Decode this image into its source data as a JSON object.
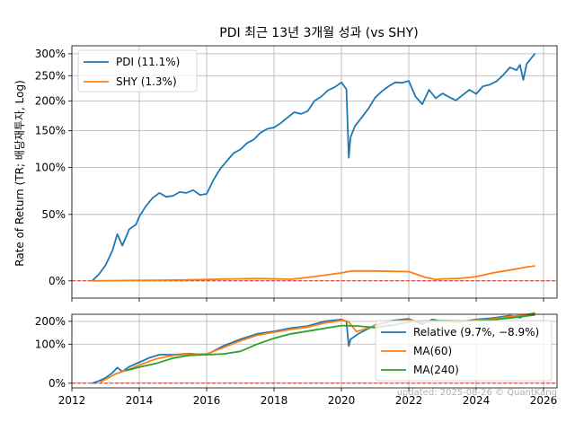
{
  "chart_data": [
    {
      "type": "line",
      "title": "PDI 최근 13년 3개월 성과 (vs SHY)",
      "ylabel": "Rate of Return (TR; 배당재투자, Log)",
      "y_scale": "log(1+r)",
      "ylim_pct": [
        -10,
        320
      ],
      "yticks": [
        0,
        50,
        100,
        150,
        200,
        250,
        300
      ],
      "ytick_labels": [
        "0%",
        "50%",
        "100%",
        "150%",
        "200%",
        "250%",
        "300%"
      ],
      "xlim": [
        2012.0,
        2026.4
      ],
      "grid": true,
      "legend_position": "top-left",
      "reference_line": {
        "y": 0,
        "style": "dashed",
        "color": "#d62728"
      },
      "series": [
        {
          "name": "PDI (11.1%)",
          "color": "#1f77b4",
          "x": [
            2012.6,
            2012.8,
            2013.0,
            2013.2,
            2013.35,
            2013.5,
            2013.7,
            2013.9,
            2014.0,
            2014.2,
            2014.4,
            2014.6,
            2014.8,
            2015.0,
            2015.2,
            2015.4,
            2015.6,
            2015.8,
            2016.0,
            2016.2,
            2016.4,
            2016.6,
            2016.8,
            2017.0,
            2017.2,
            2017.4,
            2017.6,
            2017.8,
            2018.0,
            2018.2,
            2018.4,
            2018.6,
            2018.8,
            2019.0,
            2019.2,
            2019.4,
            2019.6,
            2019.8,
            2020.0,
            2020.15,
            2020.22,
            2020.27,
            2020.4,
            2020.6,
            2020.8,
            2021.0,
            2021.2,
            2021.4,
            2021.6,
            2021.8,
            2022.0,
            2022.2,
            2022.4,
            2022.6,
            2022.8,
            2023.0,
            2023.2,
            2023.4,
            2023.6,
            2023.8,
            2024.0,
            2024.2,
            2024.4,
            2024.6,
            2024.8,
            2025.0,
            2025.2,
            2025.3,
            2025.4,
            2025.5,
            2025.6,
            2025.75
          ],
          "y": [
            0,
            4,
            10,
            20,
            33,
            24,
            37,
            41,
            48,
            58,
            66,
            71,
            67,
            68,
            72,
            71,
            74,
            69,
            70,
            85,
            98,
            108,
            118,
            123,
            132,
            137,
            147,
            153,
            155,
            162,
            171,
            180,
            177,
            182,
            200,
            208,
            220,
            226,
            236,
            222,
            112,
            140,
            157,
            171,
            186,
            206,
            218,
            228,
            236,
            235,
            239,
            208,
            194,
            221,
            205,
            214,
            207,
            201,
            211,
            221,
            213,
            228,
            231,
            238,
            251,
            268,
            262,
            274,
            241,
            276,
            286,
            301
          ]
        },
        {
          "name": "SHY (1.3%)",
          "color": "#ff7f0e",
          "x": [
            2012.6,
            2013.5,
            2014.5,
            2015.5,
            2016.5,
            2017.5,
            2018.5,
            2019.0,
            2019.5,
            2020.0,
            2020.3,
            2021.0,
            2021.5,
            2022.0,
            2022.5,
            2022.8,
            2023.0,
            2023.5,
            2024.0,
            2024.5,
            2025.0,
            2025.5,
            2025.75
          ],
          "y": [
            0,
            0.2,
            0.4,
            0.6,
            1.1,
            1.4,
            1.0,
            2.1,
            3.5,
            5.0,
            6.2,
            6.2,
            6.0,
            5.8,
            2.1,
            0.8,
            1.2,
            1.5,
            2.6,
            5.0,
            6.8,
            8.8,
            9.6
          ]
        }
      ]
    },
    {
      "type": "line",
      "y_scale": "log(1+r)",
      "ylim_pct": [
        -8,
        240
      ],
      "yticks": [
        0,
        100,
        200
      ],
      "ytick_labels": [
        "0%",
        "100%",
        "200%"
      ],
      "xlim": [
        2012.0,
        2026.4
      ],
      "xticks": [
        2012,
        2014,
        2016,
        2018,
        2020,
        2022,
        2024,
        2026
      ],
      "xtick_labels": [
        "2012",
        "2014",
        "2016",
        "2018",
        "2020",
        "2022",
        "2024",
        "2026"
      ],
      "grid": true,
      "legend_position": "bottom-right",
      "reference_line": {
        "y": 0,
        "style": "dashed",
        "color": "#d62728"
      },
      "series": [
        {
          "name": "Relative (9.7%, −8.9%)",
          "color": "#1f77b4",
          "x": [
            2012.6,
            2012.8,
            2013.0,
            2013.2,
            2013.35,
            2013.5,
            2013.7,
            2014.0,
            2014.3,
            2014.6,
            2015.0,
            2015.5,
            2016.0,
            2016.5,
            2017.0,
            2017.5,
            2018.0,
            2018.5,
            2019.0,
            2019.5,
            2020.0,
            2020.15,
            2020.22,
            2020.27,
            2020.5,
            2021.0,
            2021.5,
            2022.0,
            2022.4,
            2022.7,
            2023.0,
            2023.5,
            2024.0,
            2024.5,
            2025.0,
            2025.3,
            2025.5,
            2025.75
          ],
          "y": [
            0,
            4,
            10,
            20,
            32,
            23,
            34,
            45,
            57,
            66,
            66,
            69,
            66,
            94,
            118,
            140,
            151,
            166,
            176,
            200,
            210,
            200,
            93,
            118,
            140,
            181,
            204,
            213,
            185,
            210,
            200,
            196,
            210,
            218,
            232,
            220,
            238,
            248
          ]
        },
        {
          "name": "MA(60)",
          "color": "#ff7f0e",
          "x": [
            2012.85,
            2013.3,
            2013.7,
            2014.0,
            2014.5,
            2015.0,
            2015.5,
            2016.0,
            2016.5,
            2017.0,
            2017.5,
            2018.0,
            2018.5,
            2019.0,
            2019.5,
            2020.0,
            2020.2,
            2020.45,
            2020.7,
            2021.0,
            2021.5,
            2022.0,
            2022.5,
            2023.0,
            2023.5,
            2024.0,
            2024.5,
            2025.0,
            2025.5,
            2025.75
          ],
          "y": [
            2,
            18,
            28,
            38,
            54,
            64,
            67,
            68,
            88,
            112,
            134,
            147,
            160,
            171,
            191,
            205,
            200,
            150,
            162,
            178,
            200,
            206,
            195,
            202,
            196,
            206,
            213,
            226,
            238,
            245
          ]
        },
        {
          "name": "MA(240)",
          "color": "#2ca02c",
          "x": [
            2013.6,
            2014.0,
            2014.5,
            2015.0,
            2015.5,
            2016.0,
            2016.5,
            2017.0,
            2017.5,
            2018.0,
            2018.5,
            2019.0,
            2019.5,
            2020.0,
            2020.5,
            2021.0,
            2021.5,
            2022.0,
            2022.5,
            2023.0,
            2023.5,
            2024.0,
            2024.5,
            2025.0,
            2025.5,
            2025.75
          ],
          "y": [
            25,
            33,
            42,
            56,
            64,
            66,
            68,
            76,
            100,
            122,
            140,
            152,
            165,
            178,
            176,
            168,
            180,
            196,
            202,
            203,
            202,
            202,
            209,
            218,
            230,
            236
          ]
        }
      ]
    }
  ],
  "footer": {
    "updated_text": "updated: 2025-08-26 © QuantKang"
  }
}
